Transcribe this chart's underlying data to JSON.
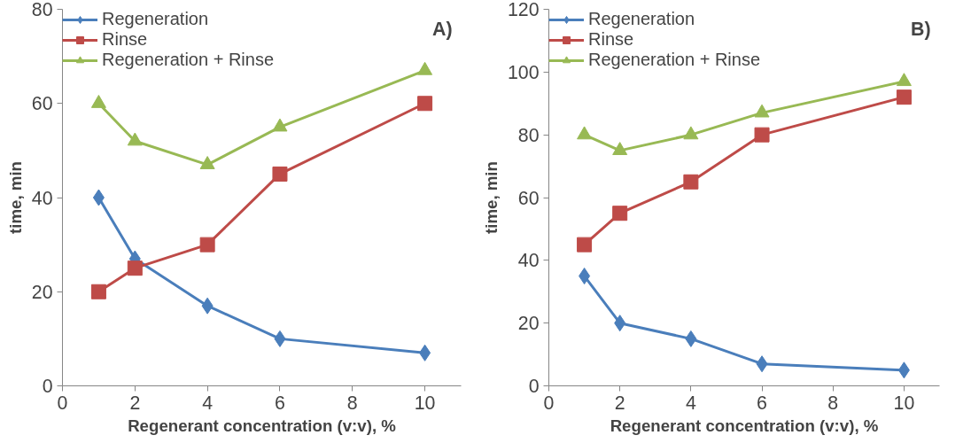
{
  "chart_data": [
    {
      "type": "line",
      "xlabel": "Regenerant concentration (v:v), %",
      "ylabel": "time, min",
      "annotations": [
        "A)"
      ],
      "x": [
        1,
        2,
        4,
        6,
        10
      ],
      "xlim": [
        0,
        11
      ],
      "xticks": [
        0,
        2,
        4,
        6,
        8,
        10
      ],
      "ylim": [
        0,
        80
      ],
      "yticks": [
        0,
        20,
        40,
        60,
        80
      ],
      "grid": false,
      "legend": "top left",
      "series": [
        {
          "name": "Regeneration",
          "color": "#4a7ebb",
          "marker": "diamond",
          "values": [
            40,
            27,
            17,
            10,
            7
          ]
        },
        {
          "name": "Rinse",
          "color": "#be4b48",
          "marker": "square",
          "values": [
            20,
            25,
            30,
            45,
            60
          ]
        },
        {
          "name": "Regeneration + Rinse",
          "color": "#98b954",
          "marker": "triangle",
          "values": [
            60,
            52,
            47,
            55,
            67
          ]
        }
      ]
    },
    {
      "type": "line",
      "xlabel": "Regenerant concentration (v:v), %",
      "ylabel": "time, min",
      "annotations": [
        "B)"
      ],
      "x": [
        1,
        2,
        4,
        6,
        10
      ],
      "xlim": [
        0,
        11
      ],
      "xticks": [
        0,
        2,
        4,
        6,
        8,
        10
      ],
      "ylim": [
        0,
        120
      ],
      "yticks": [
        0,
        20,
        40,
        60,
        80,
        100,
        120
      ],
      "grid": false,
      "legend": "top left",
      "series": [
        {
          "name": "Regeneration",
          "color": "#4a7ebb",
          "marker": "diamond",
          "values": [
            35,
            20,
            15,
            7,
            5
          ]
        },
        {
          "name": "Rinse",
          "color": "#be4b48",
          "marker": "square",
          "values": [
            45,
            55,
            65,
            80,
            92
          ]
        },
        {
          "name": "Regeneration + Rinse",
          "color": "#98b954",
          "marker": "triangle",
          "values": [
            80,
            75,
            80,
            87,
            97
          ]
        }
      ]
    }
  ]
}
